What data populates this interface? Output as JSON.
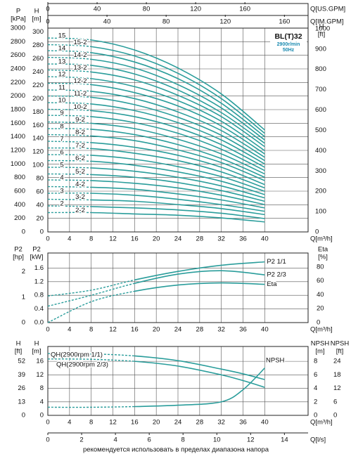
{
  "chart_data": [
    {
      "type": "line",
      "model": "BL(T)32",
      "speed": "2900r/min",
      "frequency": "50Hz",
      "color": "#2a9d9b",
      "grid": true,
      "x_label": "Q[m³/h]",
      "x": [
        0,
        8,
        16,
        24,
        32,
        40
      ],
      "xlim": [
        0,
        48
      ],
      "xticks": [
        0,
        4,
        8,
        12,
        16,
        20,
        24,
        28,
        32,
        36,
        40
      ],
      "xaxes": [
        {
          "label": "Q[US.GPM]",
          "xlim": [
            0,
            211.3
          ],
          "xticks": [
            0,
            40,
            80,
            120,
            160
          ]
        },
        {
          "label": "Q[IM.GPM]",
          "xlim": [
            0,
            176
          ],
          "xticks": [
            0,
            40,
            80,
            120,
            160
          ]
        }
      ],
      "yaxes": [
        {
          "name": "P",
          "unit": "[kPa]",
          "ylim": [
            0,
            3000
          ],
          "grid": true,
          "yticks": [
            0,
            200,
            400,
            600,
            800,
            1000,
            1200,
            1400,
            1600,
            1800,
            2000,
            2200,
            2400,
            2600,
            2800,
            3000
          ]
        },
        {
          "name": "H",
          "unit": "[m]",
          "ylim": [
            0,
            305.8
          ],
          "yticks": [
            0,
            20,
            40,
            60,
            80,
            100,
            120,
            140,
            160,
            180,
            200,
            220,
            240,
            260,
            280,
            300
          ]
        },
        {
          "name": "H",
          "unit": "[ft]",
          "ylim": [
            0,
            1003
          ],
          "yticks": [
            0,
            100,
            200,
            300,
            400,
            500,
            600,
            700,
            800,
            900,
            1000
          ]
        }
      ],
      "series": [
        {
          "name": "15",
          "axis": 1,
          "values": [
            291,
            288,
            273,
            246,
            207,
            153
          ]
        },
        {
          "name": "15-2",
          "axis": 1,
          "values": [
            281,
            278,
            264,
            238,
            200,
            148
          ]
        },
        {
          "name": "14",
          "axis": 1,
          "values": [
            272,
            269,
            255,
            230,
            193,
            143
          ]
        },
        {
          "name": "14-2",
          "axis": 1,
          "values": [
            262,
            259,
            246,
            221,
            186,
            138
          ]
        },
        {
          "name": "13",
          "axis": 1,
          "values": [
            252,
            250,
            237,
            213,
            179,
            133
          ]
        },
        {
          "name": "13-2",
          "axis": 1,
          "values": [
            243,
            240,
            228,
            205,
            173,
            128
          ]
        },
        {
          "name": "12",
          "axis": 1,
          "values": [
            233,
            230,
            218,
            197,
            166,
            122
          ]
        },
        {
          "name": "12-2",
          "axis": 1,
          "values": [
            223,
            221,
            209,
            189,
            159,
            117
          ]
        },
        {
          "name": "11",
          "axis": 1,
          "values": [
            213,
            211,
            200,
            180,
            152,
            112
          ]
        },
        {
          "name": "11-2",
          "axis": 1,
          "values": [
            204,
            202,
            191,
            172,
            145,
            107
          ]
        },
        {
          "name": "10",
          "axis": 1,
          "values": [
            194,
            192,
            182,
            164,
            138,
            102
          ]
        },
        {
          "name": "10-2",
          "axis": 1,
          "values": [
            184,
            182,
            173,
            156,
            131,
            97
          ]
        },
        {
          "name": "9",
          "axis": 1,
          "values": [
            175,
            173,
            164,
            148,
            124,
            92
          ]
        },
        {
          "name": "9-2",
          "axis": 1,
          "values": [
            165,
            163,
            155,
            139,
            117,
            87
          ]
        },
        {
          "name": "8",
          "axis": 1,
          "values": [
            155,
            154,
            146,
            131,
            110,
            82
          ]
        },
        {
          "name": "8-2",
          "axis": 1,
          "values": [
            146,
            144,
            137,
            123,
            104,
            77
          ]
        },
        {
          "name": "7",
          "axis": 1,
          "values": [
            136,
            134,
            127,
            115,
            97,
            71
          ]
        },
        {
          "name": "7-2",
          "axis": 1,
          "values": [
            126,
            125,
            118,
            107,
            90,
            66
          ]
        },
        {
          "name": "6",
          "axis": 1,
          "values": [
            116,
            115,
            109,
            98,
            83,
            61
          ]
        },
        {
          "name": "6-2",
          "axis": 1,
          "values": [
            107,
            106,
            100,
            90,
            76,
            56
          ]
        },
        {
          "name": "5",
          "axis": 1,
          "values": [
            97,
            96,
            91,
            82,
            69,
            51
          ]
        },
        {
          "name": "5-2",
          "axis": 1,
          "values": [
            87,
            86,
            82,
            74,
            62,
            46
          ]
        },
        {
          "name": "4",
          "axis": 1,
          "values": [
            78,
            77,
            73,
            66,
            55,
            41
          ]
        },
        {
          "name": "4-2",
          "axis": 1,
          "values": [
            68,
            67,
            64,
            57,
            48,
            36
          ]
        },
        {
          "name": "3",
          "axis": 1,
          "values": [
            58,
            58,
            55,
            49,
            41,
            31
          ]
        },
        {
          "name": "3-2",
          "axis": 1,
          "values": [
            49,
            48,
            46,
            41,
            35,
            26
          ]
        },
        {
          "name": "2",
          "axis": 1,
          "values": [
            39,
            38,
            36,
            33,
            28,
            20
          ]
        },
        {
          "name": "2-2",
          "axis": 1,
          "values": [
            29,
            29,
            27,
            25,
            21,
            15
          ]
        }
      ]
    },
    {
      "type": "line",
      "color": "#2a9d9b",
      "grid": true,
      "x_label": "Q[m³/h]",
      "x": [
        0,
        8,
        16,
        24,
        32,
        40
      ],
      "xlim": [
        0,
        48
      ],
      "xticks": [
        0,
        4,
        8,
        12,
        16,
        20,
        24,
        28,
        32,
        36,
        40
      ],
      "yaxes": [
        {
          "name": "P2",
          "unit": "[hp]",
          "ylim": [
            0,
            2.735
          ],
          "yticks": [
            0,
            1,
            2
          ]
        },
        {
          "name": "P2",
          "unit": "[kW]",
          "ylim": [
            0,
            2.04
          ],
          "grid": true,
          "yticks": [
            {
              "value": 0,
              "label": "0.0"
            },
            0.4,
            0.8,
            1.2,
            1.6
          ]
        },
        {
          "name": "Eta",
          "unit": "[%]",
          "ylim": [
            0,
            100
          ],
          "yticks": [
            0,
            20,
            40,
            60,
            80
          ]
        }
      ],
      "series": [
        {
          "name": "P2 1/1",
          "axis": 1,
          "values": [
            0.78,
            0.95,
            1.25,
            1.5,
            1.68,
            1.78
          ]
        },
        {
          "name": "P2 2/3",
          "axis": 1,
          "values": [
            0.48,
            0.8,
            1.15,
            1.42,
            1.52,
            1.4
          ]
        },
        {
          "name": "Eta",
          "axis": 2,
          "values": [
            0,
            30,
            45,
            54,
            57,
            55
          ]
        }
      ]
    },
    {
      "type": "line",
      "color": "#2a9d9b",
      "grid": true,
      "x_label": "Q[m³/h]",
      "x": [
        0,
        8,
        16,
        24,
        32,
        36,
        40
      ],
      "xlim": [
        0,
        48
      ],
      "xticks": [
        0,
        4,
        8,
        12,
        16,
        20,
        24,
        28,
        32,
        36,
        40
      ],
      "xaxes": [
        {
          "label": "Q[l/s]",
          "xlim": [
            0,
            15.4
          ],
          "xticks": [
            0,
            2,
            4,
            6,
            8,
            10,
            12,
            14
          ]
        }
      ],
      "yaxes": [
        {
          "name": "H",
          "unit": "[ft]",
          "ylim": [
            0,
            66.3
          ],
          "yticks": [
            0,
            13,
            26,
            39,
            52
          ]
        },
        {
          "name": "H",
          "unit": "[m]",
          "ylim": [
            0,
            20.4
          ],
          "grid": true,
          "yticks": [
            0,
            4,
            8,
            12,
            16
          ]
        },
        {
          "name": "NPSH",
          "unit": "[m]",
          "ylim": [
            0,
            10.2
          ],
          "yticks": [
            0,
            2,
            4,
            6,
            8
          ]
        },
        {
          "name": "NPSH",
          "unit": "[ft]",
          "ylim": [
            0,
            30.6
          ],
          "yticks": [
            0,
            6,
            12,
            18,
            24
          ]
        }
      ],
      "series": [
        {
          "name": "QH(2900rpm 1/1)",
          "axis": 1,
          "values": [
            18.3,
            18.2,
            17.6,
            16.2,
            13.7,
            12.3,
            10.6
          ]
        },
        {
          "name": "QH(2900rpm 2/3)",
          "axis": 1,
          "values": [
            16.7,
            16.6,
            16.0,
            14.6,
            12.0,
            10.3,
            8.3
          ]
        },
        {
          "name": "NPSH",
          "axis": 2,
          "values": [
            1.2,
            1.2,
            1.3,
            1.5,
            2.0,
            3.8,
            7.0
          ]
        }
      ]
    }
  ],
  "footer": {
    "note": "рекомендуется использовать в пределах диапазона напора"
  }
}
